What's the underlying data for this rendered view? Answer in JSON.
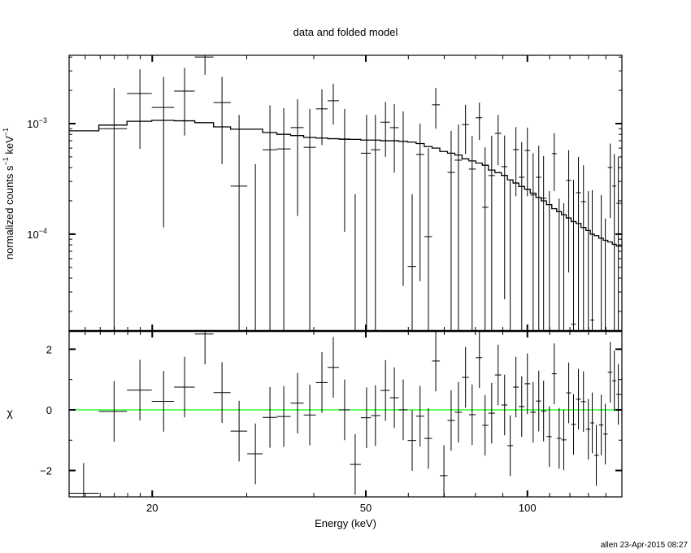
{
  "chart_data": [
    {
      "type": "scatter",
      "panel": "top",
      "title": "data and folded model",
      "ylabel_parts": [
        "normalized counts s",
        "−1",
        " keV",
        "−1"
      ],
      "xscale": "log",
      "yscale": "log",
      "xlim": [
        14,
        150
      ],
      "ylim": [
        1.33e-05,
        0.00415
      ],
      "ytick_labels": [
        {
          "value": 0.001,
          "base": "10",
          "exp": "−3"
        },
        {
          "value": 0.0001,
          "base": "10",
          "exp": "−4"
        }
      ],
      "grid": false,
      "series": [
        {
          "kind": "data-with-errors",
          "color": "#000000",
          "energy": [
            14.9,
            16.98,
            18.97,
            21.0,
            22.98,
            25.08,
            26.98,
            29.03,
            31.13,
            33.14,
            35.16,
            37.31,
            39.31,
            41.42,
            43.49,
            45.66,
            47.77,
            50.16,
            52.1,
            54.4,
            56.5,
            58.7,
            61.0,
            63.1,
            65.4,
            67.5,
            69.9,
            72.1,
            74.4,
            76.7,
            78.9,
            81.4,
            83.4,
            85.8,
            88.2,
            90.7,
            92.9,
            95.2,
            97.6,
            100.0,
            102.5,
            105.0,
            107.2,
            109.9,
            112.2,
            114.6,
            116.9,
            119.4,
            121.9,
            124.5,
            127.2,
            129.9,
            132.1,
            134.4,
            137.3,
            139.7,
            142.7,
            145.2,
            147.7
          ],
          "flux": [
            null,
            0.0009,
            0.00187,
            0.0014,
            0.00197,
            0.004,
            0.00155,
            0.000272,
            null,
            0.00058,
            0.00059,
            0.00092,
            0.00061,
            0.00136,
            0.00161,
            0.00072,
            null,
            0.00054,
            0.00058,
            0.00103,
            0.00092,
            0.00069,
            5.1e-05,
            0.000526,
            9.5e-05,
            0.00148,
            null,
            0.000362,
            0.000467,
            0.00098,
            0.000388,
            0.00113,
            0.000175,
            0.000339,
            0.000816,
            0.000408,
            null,
            0.000582,
            0.000327,
            0.000572,
            0.000226,
            0.000327,
            0.000211,
            null,
            0.000535,
            null,
            null,
            0.000306,
            1.53e-05,
            0.000237,
            0.000197,
            null,
            1.67e-05,
            null,
            null,
            null,
            0.000401,
            0.000272,
            0.00019
          ],
          "flux_upper": [
            null,
            0.0021,
            0.0031,
            0.00265,
            0.0032,
            0.00415,
            0.00265,
            0.0012,
            0.00043,
            0.00146,
            0.00138,
            0.00166,
            0.00136,
            0.00205,
            0.0023,
            0.00136,
            0.00023,
            0.0012,
            0.0012,
            0.00157,
            0.0015,
            0.00129,
            0.00023,
            0.001,
            0.0006,
            0.0021,
            null,
            0.00086,
            0.00098,
            0.00148,
            0.000776,
            0.00155,
            0.00061,
            0.000776,
            0.0012,
            0.00078,
            0.00031,
            0.00093,
            0.00068,
            0.00092,
            0.00054,
            0.00063,
            0.00051,
            0.000245,
            0.00082,
            0.00021,
            0.00019,
            0.000575,
            0.00031,
            0.0005,
            0.00042,
            0.000245,
            0.00025,
            null,
            0.000226,
            0.000138,
            0.00066,
            0.00053,
            0.0005
          ],
          "flux_lower": [
            null,
            null,
            0.00059,
            0.000115,
            0.00078,
            0.00276,
            0.00043,
            null,
            null,
            null,
            null,
            0.000146,
            null,
            0.00064,
            0.00098,
            0.000105,
            null,
            null,
            null,
            0.0005,
            0.00036,
            3.4e-05,
            null,
            3.75e-05,
            null,
            0.0009,
            null,
            null,
            null,
            0.00053,
            null,
            0.00071,
            null,
            null,
            0.00042,
            2.58e-05,
            null,
            0.00022,
            null,
            0.00022,
            null,
            null,
            null,
            null,
            0.000245,
            null,
            null,
            4.5e-05,
            null,
            null,
            null,
            null,
            null,
            null,
            null,
            null,
            0.00014,
            null,
            null
          ]
        },
        {
          "kind": "model-step",
          "color": "#000000",
          "energy": [
            14.9,
            16.98,
            18.97,
            21.0,
            22.98,
            25.08,
            26.98,
            29.03,
            31.13,
            33.14,
            35.16,
            37.31,
            39.31,
            41.42,
            43.49,
            45.66,
            47.77,
            50.16,
            52.1,
            54.4,
            56.5,
            58.7,
            61.0,
            63.1,
            65.4,
            67.5,
            69.9,
            72.1,
            74.4,
            76.7,
            78.9,
            81.4,
            83.4,
            85.8,
            88.2,
            90.7,
            92.9,
            95.2,
            97.6,
            100.0,
            102.5,
            105.0,
            107.2,
            109.9,
            112.2,
            114.6,
            116.9,
            119.4,
            121.9,
            124.5,
            127.2,
            129.9,
            132.1,
            134.4,
            137.3,
            139.7,
            142.7,
            145.2,
            147.7
          ],
          "values": [
            0.00086,
            0.00097,
            0.00105,
            0.00107,
            0.00106,
            0.00102,
            0.000935,
            0.00089,
            0.00089,
            0.00083,
            0.0008,
            0.00078,
            0.00075,
            0.00074,
            0.00073,
            0.000725,
            0.00072,
            0.00071,
            0.00071,
            0.0007,
            0.0007,
            0.00069,
            0.00068,
            0.00066,
            0.00062,
            0.0006,
            0.00056,
            0.00054,
            0.00052,
            0.00048,
            0.00046,
            0.00044,
            0.00042,
            0.00038,
            0.00036,
            0.00034,
            0.00031,
            0.00029,
            0.00027,
            0.000255,
            0.000235,
            0.000215,
            0.0002,
            0.000185,
            0.00017,
            0.00016,
            0.00015,
            0.00014,
            0.00013,
            0.000125,
            0.000115,
            0.000108,
            0.0001,
            9.7e-05,
            9.2e-05,
            8.8e-05,
            8.5e-05,
            8.1e-05,
            7.8e-05
          ]
        }
      ]
    },
    {
      "type": "scatter",
      "panel": "bottom",
      "xlabel": "Energy (keV)",
      "ylabel": "χ",
      "xscale": "log",
      "xlim": [
        14,
        150
      ],
      "ylim": [
        -2.87,
        2.6
      ],
      "xtick_labels": [
        {
          "value": 20,
          "label": "20"
        },
        {
          "value": 50,
          "label": "50"
        },
        {
          "value": 100,
          "label": "100"
        }
      ],
      "ytick_labels": [
        {
          "value": 2,
          "label": "2"
        },
        {
          "value": 0,
          "label": "0"
        },
        {
          "value": -2,
          "label": "−2"
        }
      ],
      "zero_line_color": "#00ff00",
      "residual_error": 1,
      "energy": [
        14.9,
        16.98,
        18.97,
        21.0,
        22.98,
        25.08,
        26.98,
        29.03,
        31.13,
        33.14,
        35.16,
        37.31,
        39.31,
        41.42,
        43.49,
        45.66,
        47.77,
        50.16,
        52.1,
        54.4,
        56.5,
        58.7,
        61.0,
        63.1,
        65.4,
        67.5,
        69.9,
        72.1,
        74.4,
        76.7,
        78.9,
        81.4,
        83.4,
        85.8,
        88.2,
        90.7,
        92.9,
        95.2,
        97.6,
        100.0,
        102.5,
        105.0,
        107.2,
        109.9,
        112.2,
        114.6,
        116.9,
        119.4,
        121.9,
        124.5,
        127.2,
        129.9,
        132.1,
        134.4,
        137.3,
        139.7,
        142.7,
        145.2,
        147.7
      ],
      "residuals": [
        -2.75,
        -0.05,
        0.65,
        0.28,
        0.75,
        2.5,
        0.57,
        -0.7,
        -1.45,
        -0.25,
        -0.22,
        0.22,
        -0.17,
        0.9,
        1.4,
        0.0,
        -1.8,
        -0.26,
        -0.19,
        0.64,
        0.4,
        0.0,
        -1.01,
        -0.21,
        -0.94,
        1.61,
        -2.17,
        -0.35,
        -0.08,
        1.07,
        -0.16,
        1.72,
        -0.51,
        -0.11,
        1.15,
        0.16,
        -1.18,
        0.75,
        0.11,
        0.86,
        -0.08,
        0.29,
        -0.04,
        -0.88,
        1.19,
        -0.94,
        -0.99,
        0.56,
        -0.48,
        0.35,
        0.27,
        -0.64,
        -0.43,
        -1.5,
        -0.5,
        -0.8,
        1.24,
        0.96,
        0.51
      ]
    }
  ],
  "footer": {
    "stamp": "allen 23-Apr-2015 08:27"
  }
}
